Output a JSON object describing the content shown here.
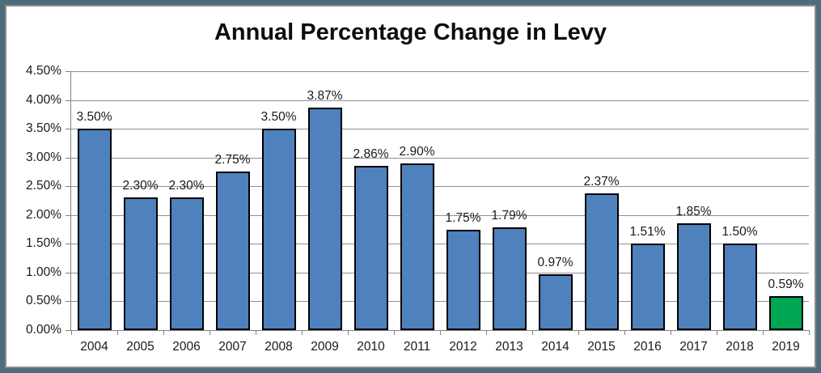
{
  "frame": {
    "outer_border_color": "#4e6d7c",
    "inner_border_color": "#8c8c8c",
    "background_color": "#ffffff"
  },
  "chart_data": {
    "type": "bar",
    "title": "Annual Percentage Change in Levy",
    "xlabel": "",
    "ylabel": "",
    "categories": [
      "2004",
      "2005",
      "2006",
      "2007",
      "2008",
      "2009",
      "2010",
      "2011",
      "2012",
      "2013",
      "2014",
      "2015",
      "2016",
      "2017",
      "2018",
      "2019"
    ],
    "values": [
      3.5,
      2.3,
      2.3,
      2.75,
      3.5,
      3.87,
      2.86,
      2.9,
      1.75,
      1.79,
      0.97,
      2.37,
      1.51,
      1.85,
      1.5,
      0.59
    ],
    "data_labels": [
      "3.50%",
      "2.30%",
      "2.30%",
      "2.75%",
      "3.50%",
      "3.87%",
      "2.86%",
      "2.90%",
      "1.75%",
      "1.79%",
      "0.97%",
      "2.37%",
      "1.51%",
      "1.85%",
      "1.50%",
      "0.59%"
    ],
    "y_ticks": [
      "4.50%",
      "4.00%",
      "3.50%",
      "3.00%",
      "2.50%",
      "2.00%",
      "1.50%",
      "1.00%",
      "0.50%",
      "0.00%"
    ],
    "ylim": [
      0,
      4.5
    ],
    "grid": true,
    "legend": "none",
    "bar_color": "#4f81bd",
    "bar_border_color": "#000000",
    "highlight_index": 15,
    "highlight_color": "#00a651",
    "gridline_color": "#909090",
    "axis_color": "#808080",
    "label_color": "#1a1a1a"
  }
}
